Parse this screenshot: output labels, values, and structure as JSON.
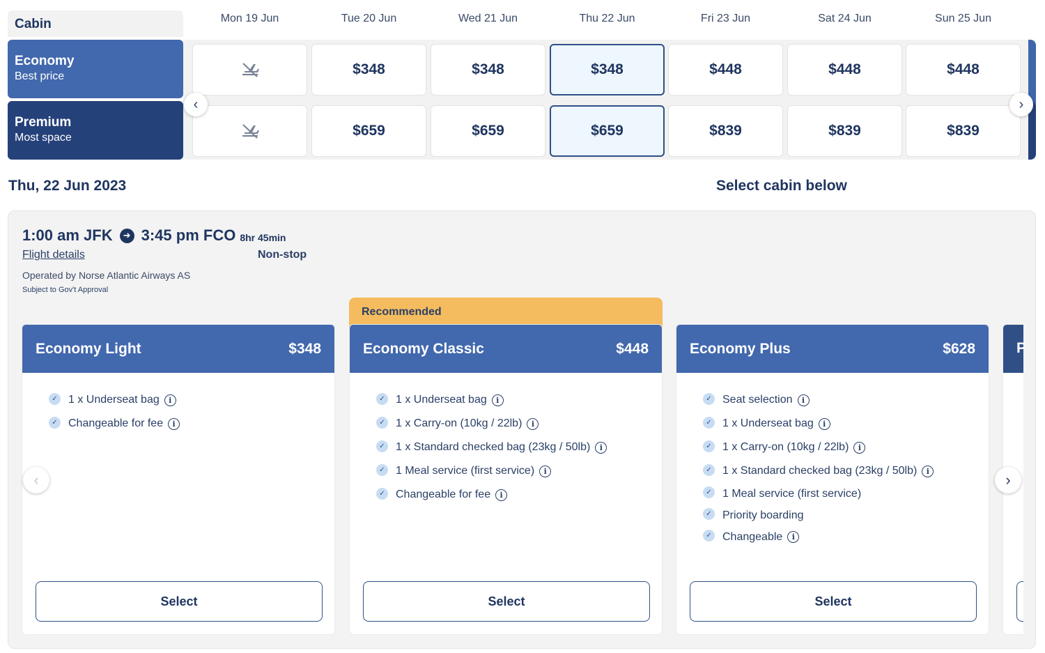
{
  "grid": {
    "cabin_header": "Cabin",
    "dates": [
      "Mon 19 Jun",
      "Tue 20 Jun",
      "Wed 21 Jun",
      "Thu 22 Jun",
      "Fri 23 Jun",
      "Sat 24 Jun",
      "Sun 25 Jun"
    ],
    "selected_index": 3,
    "cabins": [
      {
        "name": "Economy",
        "sub": "Best price",
        "prices": [
          null,
          "$348",
          "$348",
          "$348",
          "$448",
          "$448",
          "$448"
        ]
      },
      {
        "name": "Premium",
        "sub": "Most space",
        "prices": [
          null,
          "$659",
          "$659",
          "$659",
          "$839",
          "$839",
          "$839"
        ]
      }
    ],
    "icons": {
      "no_flight": "no-flight-icon",
      "prev": "chevron-left-icon",
      "next": "chevron-right-icon"
    }
  },
  "day_title": "Thu, 22 Jun 2023",
  "select_cabin": "Select cabin below",
  "flight": {
    "depart": "1:00 am JFK",
    "arrive": "3:45 pm FCO",
    "duration": "8hr 45min",
    "details_link": "Flight details",
    "stops": "Non-stop",
    "operated_by": "Operated by Norse Atlantic Airways AS",
    "approval": "Subject to Gov't Approval"
  },
  "fares": {
    "recommended_label": "Recommended",
    "cards": [
      {
        "name": "Economy Light",
        "price": "$348",
        "features": [
          {
            "text": "1 x Underseat bag",
            "info": true
          },
          {
            "text": "Changeable for fee",
            "info": true
          }
        ],
        "button": "Select"
      },
      {
        "name": "Economy Classic",
        "price": "$448",
        "features": [
          {
            "text": "1 x Underseat bag",
            "info": true
          },
          {
            "text": "1 x Carry-on (10kg / 22lb)",
            "info": true
          },
          {
            "text": "1 x Standard checked bag (23kg / 50lb)",
            "info": true
          },
          {
            "text": "1 Meal service (first service)",
            "info": true
          },
          {
            "text": "Changeable for fee",
            "info": true
          }
        ],
        "button": "Select"
      },
      {
        "name": "Economy Plus",
        "price": "$628",
        "features": [
          {
            "text": "Seat selection",
            "info": true
          },
          {
            "text": "1 x Underseat bag",
            "info": true
          },
          {
            "text": "1 x Carry-on (10kg / 22lb)",
            "info": true
          },
          {
            "text": "1 x Standard checked bag (23kg / 50lb)",
            "info": true
          },
          {
            "text": "1 Meal service (first service)",
            "info": false
          },
          {
            "text": "Priority boarding",
            "info": false
          },
          {
            "text": "Changeable",
            "info": true
          }
        ],
        "button": "Select"
      }
    ],
    "partial_card_initial": "P"
  },
  "colors": {
    "economy": "#4268ad",
    "premium": "#25417a",
    "recommended": "#f4bc5e",
    "selected_bg": "#eef6fe"
  }
}
